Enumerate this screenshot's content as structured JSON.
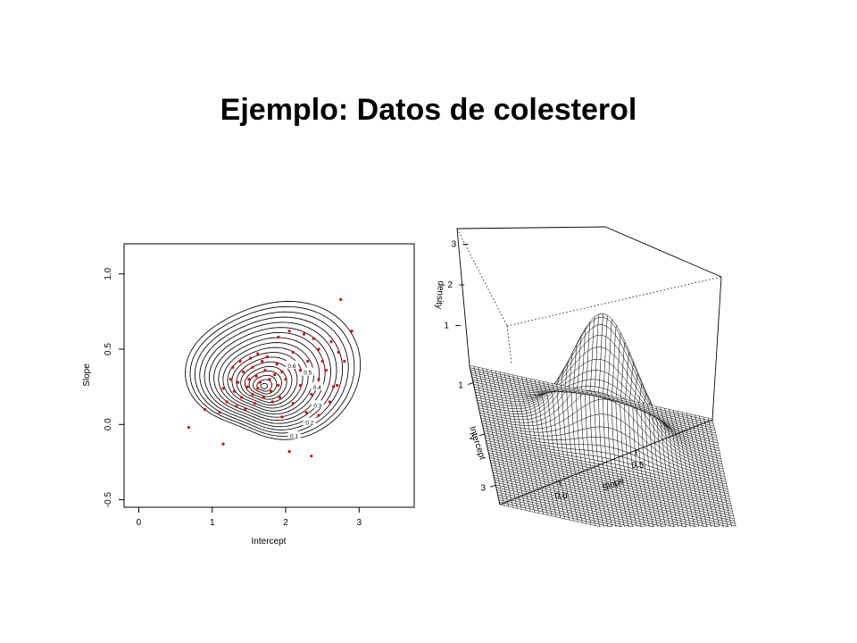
{
  "slide": {
    "title": "Ejemplo: Datos de colesterol"
  },
  "colors": {
    "points": "#e00000",
    "lines": "#000000",
    "background": "#ffffff"
  },
  "chart_data": [
    {
      "type": "contour",
      "title": "",
      "xlabel": "Intercept",
      "ylabel": "Slope",
      "xlim": [
        -0.2,
        3.75
      ],
      "ylim": [
        -0.55,
        1.2
      ],
      "xticks": [
        "0",
        "1",
        "2",
        "3"
      ],
      "yticks": [
        "-0.5",
        "0.0",
        "0.5",
        "1.0"
      ],
      "contour_labels": [
        "0.1",
        "0.2",
        "0.3",
        "0.4",
        "0.5",
        "0.6"
      ],
      "density_center": [
        1.7,
        0.25
      ],
      "points": [
        [
          0.68,
          -0.02
        ],
        [
          0.9,
          0.1
        ],
        [
          1.15,
          -0.13
        ],
        [
          2.05,
          -0.18
        ],
        [
          2.35,
          -0.21
        ],
        [
          2.75,
          0.83
        ],
        [
          2.9,
          0.62
        ],
        [
          2.62,
          0.55
        ],
        [
          2.72,
          0.48
        ],
        [
          2.8,
          0.42
        ],
        [
          2.45,
          0.5
        ],
        [
          2.38,
          0.57
        ],
        [
          2.25,
          0.6
        ],
        [
          2.05,
          0.62
        ],
        [
          1.9,
          0.58
        ],
        [
          2.1,
          0.48
        ],
        [
          2.3,
          0.42
        ],
        [
          2.55,
          0.36
        ],
        [
          2.45,
          0.3
        ],
        [
          2.65,
          0.25
        ],
        [
          2.35,
          0.2
        ],
        [
          2.2,
          0.26
        ],
        [
          2.1,
          0.14
        ],
        [
          2.45,
          0.06
        ],
        [
          2.6,
          0.15
        ],
        [
          2.7,
          0.26
        ],
        [
          1.95,
          0.05
        ],
        [
          2.2,
          0.36
        ],
        [
          2.5,
          0.42
        ],
        [
          2.28,
          0.08
        ],
        [
          1.25,
          0.3
        ],
        [
          1.35,
          0.28
        ],
        [
          1.42,
          0.35
        ],
        [
          1.5,
          0.3
        ],
        [
          1.55,
          0.38
        ],
        [
          1.6,
          0.32
        ],
        [
          1.65,
          0.28
        ],
        [
          1.72,
          0.36
        ],
        [
          1.78,
          0.3
        ],
        [
          1.85,
          0.33
        ],
        [
          1.3,
          0.22
        ],
        [
          1.4,
          0.18
        ],
        [
          1.48,
          0.25
        ],
        [
          1.55,
          0.2
        ],
        [
          1.62,
          0.24
        ],
        [
          1.7,
          0.18
        ],
        [
          1.8,
          0.22
        ],
        [
          1.9,
          0.26
        ],
        [
          1.2,
          0.15
        ],
        [
          1.33,
          0.12
        ],
        [
          1.45,
          0.1
        ],
        [
          1.58,
          0.14
        ],
        [
          1.68,
          0.42
        ],
        [
          1.75,
          0.45
        ],
        [
          1.62,
          0.47
        ],
        [
          1.88,
          0.4
        ],
        [
          1.95,
          0.35
        ],
        [
          1.15,
          0.24
        ],
        [
          1.28,
          0.38
        ],
        [
          1.52,
          0.44
        ],
        [
          1.38,
          0.42
        ],
        [
          1.82,
          0.15
        ],
        [
          1.92,
          0.18
        ],
        [
          2.0,
          0.3
        ],
        [
          1.1,
          0.08
        ]
      ]
    },
    {
      "type": "surface",
      "title": "",
      "xlabel": "Intercept",
      "ylabel": "Slope",
      "zlabel": "density",
      "xticks": [
        "1",
        "2",
        "3"
      ],
      "yticks": [
        "0.0",
        "0.5"
      ],
      "zticks": [
        "1",
        "2",
        "3"
      ],
      "zlim": [
        0,
        3
      ],
      "peak_density": 2.9
    }
  ]
}
